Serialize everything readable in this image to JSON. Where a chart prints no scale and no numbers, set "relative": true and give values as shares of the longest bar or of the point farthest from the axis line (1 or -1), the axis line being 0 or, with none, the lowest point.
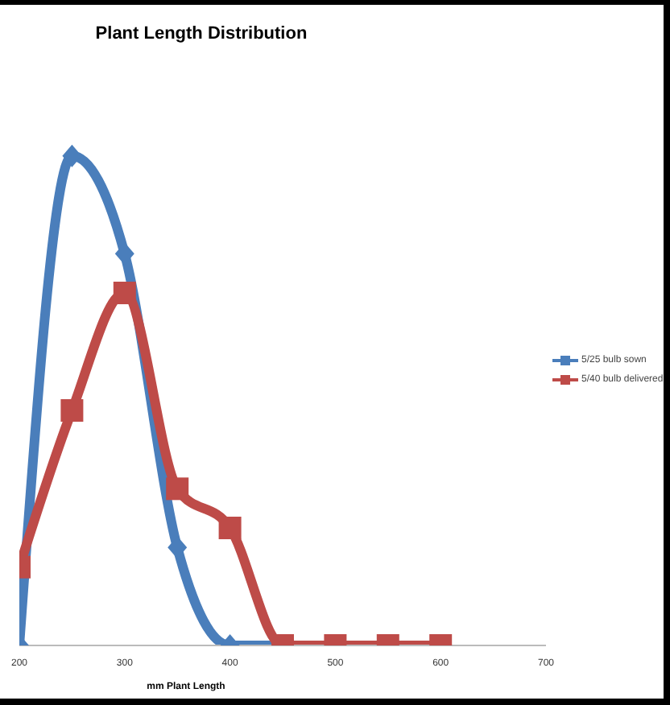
{
  "chart_data": {
    "type": "line",
    "title": "Plant Length Distribution",
    "xlabel": "mm Plant Length",
    "relative": true,
    "x": [
      200,
      250,
      300,
      350,
      400,
      450,
      500,
      550,
      600
    ],
    "xlim": [
      200,
      700
    ],
    "xticks": [
      200,
      300,
      400,
      500,
      600,
      700
    ],
    "legend": "right",
    "grid": false,
    "series": [
      {
        "name": "5/25 bulb sown",
        "color": "#4a7ebb",
        "marker": "diamond",
        "values": [
          0,
          1,
          0.8,
          0.2,
          0,
          0,
          0,
          null,
          null
        ]
      },
      {
        "name": "5/40 bulb delivered",
        "color": "#be4b48",
        "marker": "square",
        "values": [
          0.16,
          0.48,
          0.72,
          0.32,
          0.24,
          0,
          0,
          0,
          0
        ]
      }
    ]
  }
}
